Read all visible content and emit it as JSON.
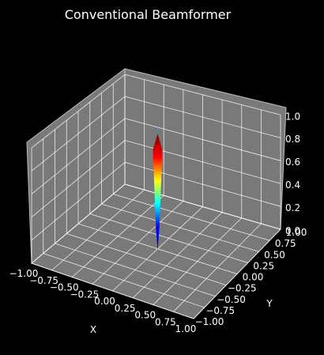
{
  "chart_data": {
    "type": "surface3d",
    "title": "Conventional Beamformer",
    "xlabel": "X",
    "ylabel": "Y",
    "zlabel": "",
    "xlim": [
      -1.0,
      1.0
    ],
    "ylim": [
      -1.0,
      1.0
    ],
    "zlim": [
      0.0,
      1.0
    ],
    "x_ticks": [
      "−1.00",
      "−0.75",
      "−0.50",
      "−0.25",
      "0.00",
      "0.25",
      "0.50",
      "0.75",
      "1.00"
    ],
    "y_ticks": [
      "−1.00",
      "−0.75",
      "−0.50",
      "−0.25",
      "0.00",
      "0.25",
      "0.50",
      "0.75",
      "1.00"
    ],
    "z_ticks": [
      "0.0",
      "0.2",
      "0.4",
      "0.6",
      "0.8",
      "1.0"
    ],
    "peak": {
      "x": 0.0,
      "y": 0.0,
      "z": 1.0
    },
    "colormap": "jet",
    "colormap_stops": [
      "#00007f",
      "#0000ff",
      "#00ffff",
      "#ffff00",
      "#ff0000",
      "#7f0000"
    ],
    "pane_color": "#808080",
    "grid": true
  }
}
